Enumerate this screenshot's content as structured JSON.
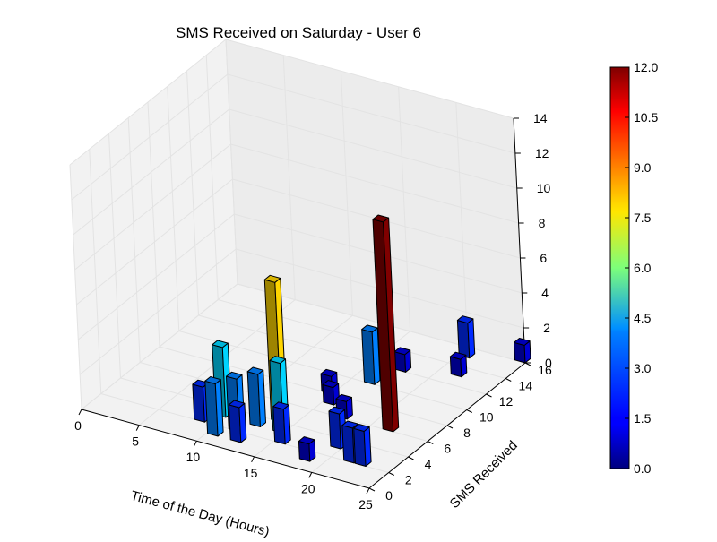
{
  "chart_data": {
    "type": "bar3d",
    "title": "SMS Received on Saturday - User 6",
    "xlabel": "Time of the Day (Hours)",
    "ylabel": "SMS Received",
    "zlabel": "",
    "xlim": [
      0,
      25
    ],
    "ylim": [
      0,
      16
    ],
    "zlim": [
      0,
      14
    ],
    "xticks": [
      "0",
      "5",
      "10",
      "15",
      "20",
      "25"
    ],
    "yticks": [
      "0",
      "2",
      "4",
      "6",
      "8",
      "10",
      "12",
      "14",
      "16"
    ],
    "zticks": [
      "0",
      "2",
      "4",
      "6",
      "8",
      "10",
      "12",
      "14"
    ],
    "colormap": "jet",
    "colorbar": {
      "min": 0.0,
      "max": 12.0,
      "ticks": [
        "0.0",
        "1.5",
        "3.0",
        "4.5",
        "6.0",
        "7.5",
        "9.0",
        "10.5",
        "12.0"
      ]
    },
    "grid": true,
    "bars": [
      {
        "x": 9,
        "y": 2,
        "z": 2
      },
      {
        "x": 10,
        "y": 3,
        "z": 4
      },
      {
        "x": 11,
        "y": 1,
        "z": 3
      },
      {
        "x": 12,
        "y": 2,
        "z": 3
      },
      {
        "x": 13,
        "y": 3,
        "z": 3
      },
      {
        "x": 13,
        "y": 1,
        "z": 2
      },
      {
        "x": 14,
        "y": 4,
        "z": 8
      },
      {
        "x": 15,
        "y": 3,
        "z": 4
      },
      {
        "x": 15,
        "y": 8,
        "z": 1
      },
      {
        "x": 16,
        "y": 2,
        "z": 2
      },
      {
        "x": 16,
        "y": 7,
        "z": 1
      },
      {
        "x": 17,
        "y": 10,
        "z": 3
      },
      {
        "x": 18,
        "y": 12,
        "z": 1
      },
      {
        "x": 18,
        "y": 6,
        "z": 1
      },
      {
        "x": 19,
        "y": 1,
        "z": 1
      },
      {
        "x": 20,
        "y": 3,
        "z": 2
      },
      {
        "x": 21,
        "y": 15,
        "z": 2
      },
      {
        "x": 22,
        "y": 6,
        "z": 12
      },
      {
        "x": 22,
        "y": 2,
        "z": 2
      },
      {
        "x": 23,
        "y": 2,
        "z": 2
      },
      {
        "x": 22,
        "y": 13,
        "z": 1
      },
      {
        "x": 25,
        "y": 16,
        "z": 1
      }
    ]
  }
}
